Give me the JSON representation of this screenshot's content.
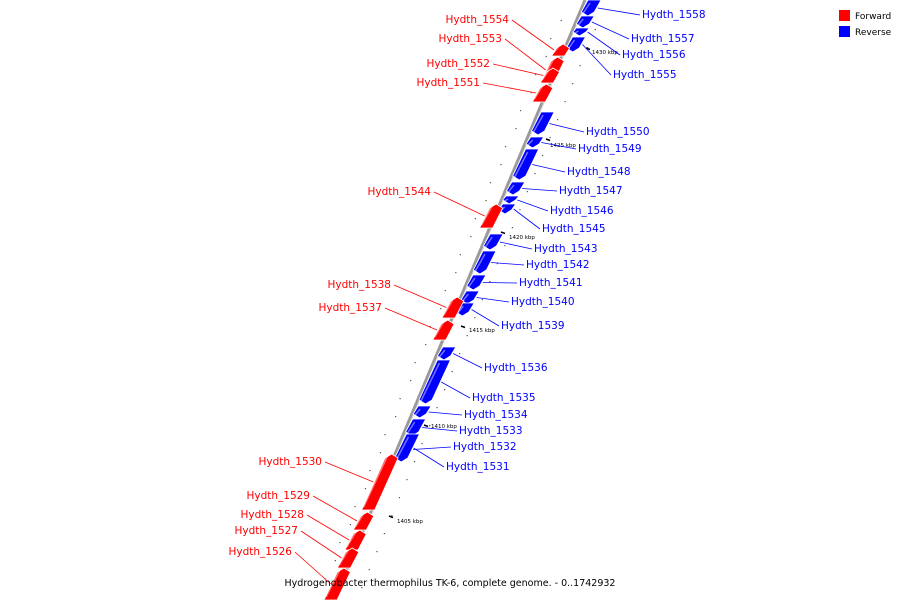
{
  "caption": "Hydrogenobacter thermophilus TK-6, complete genome. - 0..1742932",
  "colors": {
    "forward": "#ff0000",
    "reverse": "#0000ff",
    "backbone": "#999999"
  },
  "legend": [
    {
      "label": "Forward",
      "strand": "forward"
    },
    {
      "label": "Reverse",
      "strand": "reverse"
    }
  ],
  "ticks": [
    "1430 kbp",
    "1425 kbp",
    "1420 kbp",
    "1415 kbp",
    "1410 kbp",
    "1405 kbp"
  ],
  "genes": [
    {
      "name": "Hydth_1558",
      "strand": "reverse"
    },
    {
      "name": "Hydth_1557",
      "strand": "reverse"
    },
    {
      "name": "Hydth_1556",
      "strand": "reverse"
    },
    {
      "name": "Hydth_1555",
      "strand": "reverse"
    },
    {
      "name": "Hydth_1554",
      "strand": "forward"
    },
    {
      "name": "Hydth_1553",
      "strand": "forward"
    },
    {
      "name": "Hydth_1552",
      "strand": "forward"
    },
    {
      "name": "Hydth_1551",
      "strand": "forward"
    },
    {
      "name": "Hydth_1550",
      "strand": "reverse"
    },
    {
      "name": "Hydth_1549",
      "strand": "reverse"
    },
    {
      "name": "Hydth_1548",
      "strand": "reverse"
    },
    {
      "name": "Hydth_1547",
      "strand": "reverse"
    },
    {
      "name": "Hydth_1546",
      "strand": "reverse"
    },
    {
      "name": "Hydth_1545",
      "strand": "reverse"
    },
    {
      "name": "Hydth_1544",
      "strand": "forward"
    },
    {
      "name": "Hydth_1543",
      "strand": "reverse"
    },
    {
      "name": "Hydth_1542",
      "strand": "reverse"
    },
    {
      "name": "Hydth_1541",
      "strand": "reverse"
    },
    {
      "name": "Hydth_1540",
      "strand": "reverse"
    },
    {
      "name": "Hydth_1539",
      "strand": "reverse"
    },
    {
      "name": "Hydth_1538",
      "strand": "forward"
    },
    {
      "name": "Hydth_1537",
      "strand": "forward"
    },
    {
      "name": "Hydth_1536",
      "strand": "reverse"
    },
    {
      "name": "Hydth_1535",
      "strand": "reverse"
    },
    {
      "name": "Hydth_1534",
      "strand": "reverse"
    },
    {
      "name": "Hydth_1533",
      "strand": "reverse"
    },
    {
      "name": "Hydth_1532",
      "strand": "reverse"
    },
    {
      "name": "Hydth_1531",
      "strand": "reverse"
    },
    {
      "name": "Hydth_1530",
      "strand": "forward"
    },
    {
      "name": "Hydth_1529",
      "strand": "forward"
    },
    {
      "name": "Hydth_1528",
      "strand": "forward"
    },
    {
      "name": "Hydth_1527",
      "strand": "forward"
    },
    {
      "name": "Hydth_1526",
      "strand": "forward"
    }
  ]
}
